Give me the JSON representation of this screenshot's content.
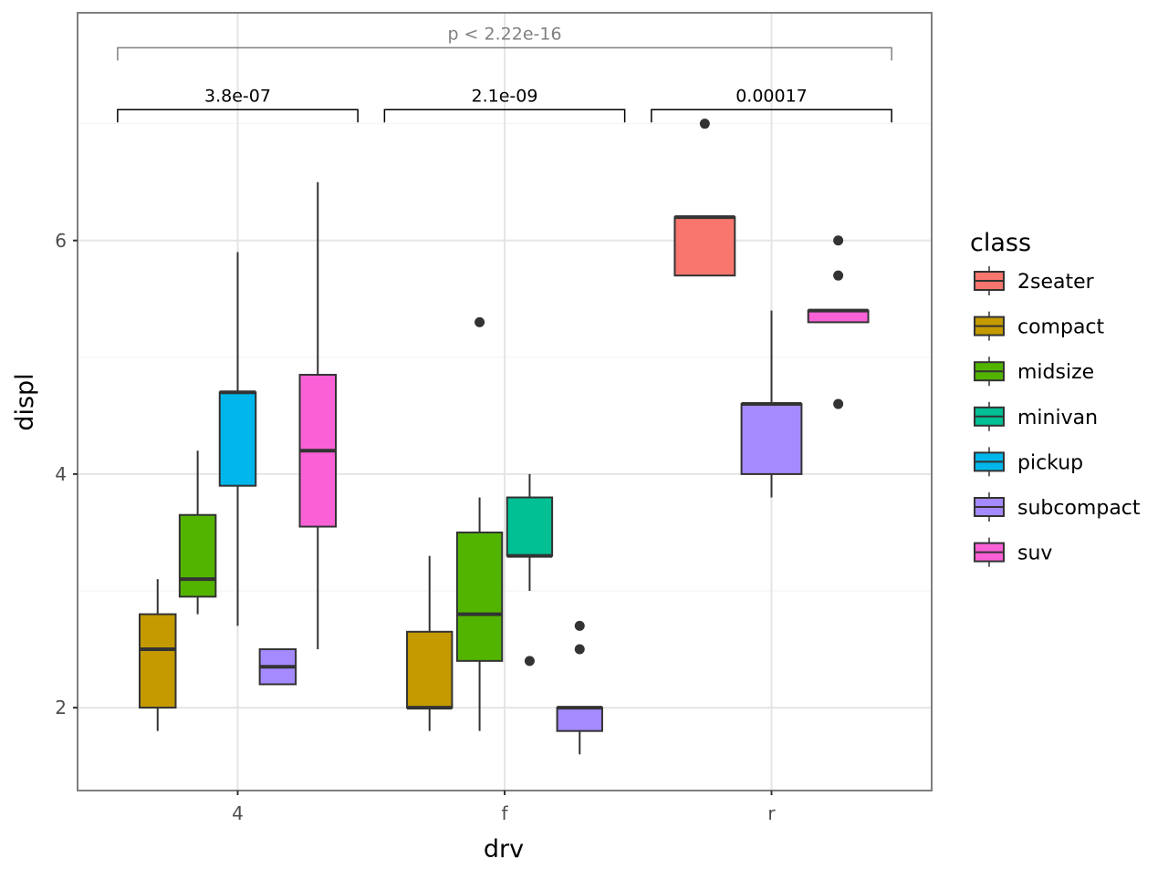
{
  "chart_data": {
    "type": "boxplot",
    "xlabel": "drv",
    "ylabel": "displ",
    "categories": [
      "4",
      "f",
      "r"
    ],
    "xlim": [
      0.4,
      3.6
    ],
    "ylim": [
      1.29,
      7.95
    ],
    "yticks": [
      2,
      4,
      6
    ],
    "grid": true,
    "legend": {
      "title": "class",
      "position": "right",
      "items": [
        {
          "label": "2seater",
          "color": "#F8766D"
        },
        {
          "label": "compact",
          "color": "#C49A00"
        },
        {
          "label": "midsize",
          "color": "#53B400"
        },
        {
          "label": "minivan",
          "color": "#00C094"
        },
        {
          "label": "pickup",
          "color": "#00B6EB"
        },
        {
          "label": "subcompact",
          "color": "#A58AFF"
        },
        {
          "label": "suv",
          "color": "#FB61D7"
        }
      ]
    },
    "groups": [
      {
        "drv": "4",
        "boxes": [
          {
            "class": "compact",
            "low": 1.8,
            "q1": 2.0,
            "median": 2.5,
            "q3": 2.8,
            "high": 3.1,
            "outliers": []
          },
          {
            "class": "midsize",
            "low": 2.8,
            "q1": 2.95,
            "median": 3.1,
            "q3": 3.65,
            "high": 4.2,
            "outliers": []
          },
          {
            "class": "pickup",
            "low": 2.7,
            "q1": 3.9,
            "median": 4.7,
            "q3": 4.7,
            "high": 5.9,
            "outliers": []
          },
          {
            "class": "subcompact",
            "low": 2.2,
            "q1": 2.2,
            "median": 2.35,
            "q3": 2.5,
            "high": 2.5,
            "outliers": []
          },
          {
            "class": "suv",
            "low": 2.5,
            "q1": 3.55,
            "median": 4.2,
            "q3": 4.85,
            "high": 6.5,
            "outliers": []
          }
        ]
      },
      {
        "drv": "f",
        "boxes": [
          {
            "class": "compact",
            "low": 1.8,
            "q1": 2.0,
            "median": 2.0,
            "q3": 2.65,
            "high": 3.3,
            "outliers": []
          },
          {
            "class": "midsize",
            "low": 1.8,
            "q1": 2.4,
            "median": 2.8,
            "q3": 3.5,
            "high": 3.8,
            "outliers": [
              5.3
            ]
          },
          {
            "class": "minivan",
            "low": 3.0,
            "q1": 3.3,
            "median": 3.3,
            "q3": 3.8,
            "high": 4.0,
            "outliers": [
              2.4
            ]
          },
          {
            "class": "subcompact",
            "low": 1.6,
            "q1": 1.8,
            "median": 2.0,
            "q3": 2.0,
            "high": 2.0,
            "outliers": [
              2.5,
              2.7
            ]
          }
        ]
      },
      {
        "drv": "r",
        "boxes": [
          {
            "class": "2seater",
            "low": 5.7,
            "q1": 5.7,
            "median": 6.2,
            "q3": 6.2,
            "high": 6.2,
            "outliers": [
              7.0
            ]
          },
          {
            "class": "subcompact",
            "low": 3.8,
            "q1": 4.0,
            "median": 4.6,
            "q3": 4.6,
            "high": 5.4,
            "outliers": []
          },
          {
            "class": "suv",
            "low": 5.3,
            "q1": 5.3,
            "median": 5.4,
            "q3": 5.4,
            "high": 5.4,
            "outliers": [
              4.6,
              5.7,
              6.0
            ]
          }
        ]
      }
    ],
    "annotations": {
      "overall": {
        "label": "p < 2.22e-16",
        "y": 7.65,
        "from": 0.55,
        "to": 3.45,
        "color": "#808080"
      },
      "pairwise": [
        {
          "label": "3.8e-07",
          "y": 7.12,
          "from": 0.55,
          "to": 1.45
        },
        {
          "label": "2.1e-09",
          "y": 7.12,
          "from": 1.55,
          "to": 2.45
        },
        {
          "label": "0.00017",
          "y": 7.12,
          "from": 2.55,
          "to": 3.45
        }
      ]
    }
  }
}
